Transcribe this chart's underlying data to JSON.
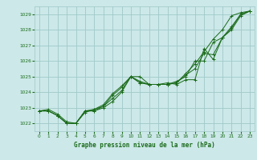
{
  "title": "Graphe pression niveau de la mer (hPa)",
  "background_color": "#cce8e8",
  "grid_color": "#a0c8c8",
  "line_color": "#1a6b1a",
  "ylim": [
    1021.5,
    1029.5
  ],
  "xlim": [
    -0.5,
    23.5
  ],
  "yticks": [
    1022,
    1023,
    1024,
    1025,
    1026,
    1027,
    1028,
    1029
  ],
  "x_ticks": [
    0,
    1,
    2,
    3,
    4,
    5,
    6,
    7,
    8,
    9,
    10,
    11,
    12,
    13,
    14,
    15,
    16,
    17,
    18,
    19,
    20,
    21,
    22,
    23
  ],
  "series": [
    [
      1022.8,
      1022.8,
      1022.5,
      1022.0,
      1022.0,
      1022.8,
      1022.8,
      1023.0,
      1023.4,
      1024.0,
      1025.0,
      1024.6,
      1024.5,
      1024.5,
      1024.6,
      1024.5,
      1024.8,
      1024.8,
      1026.8,
      1026.1,
      1027.5,
      1028.1,
      1029.0,
      1029.2
    ],
    [
      1022.8,
      1022.9,
      1022.6,
      1022.1,
      1022.0,
      1022.7,
      1022.9,
      1023.1,
      1023.8,
      1024.3,
      1025.0,
      1024.7,
      1024.5,
      1024.5,
      1024.5,
      1024.6,
      1025.2,
      1025.8,
      1026.6,
      1027.4,
      1028.0,
      1028.9,
      1029.1,
      1029.2
    ],
    [
      1022.8,
      1022.8,
      1022.5,
      1022.0,
      1022.0,
      1022.8,
      1022.9,
      1023.2,
      1023.9,
      1024.4,
      1025.0,
      1025.0,
      1024.5,
      1024.5,
      1024.5,
      1024.7,
      1025.0,
      1026.0,
      1026.0,
      1027.2,
      1027.5,
      1028.2,
      1029.0,
      1029.2
    ],
    [
      1022.8,
      1022.8,
      1022.5,
      1022.0,
      1022.0,
      1022.8,
      1022.8,
      1023.1,
      1023.6,
      1024.1,
      1025.0,
      1024.6,
      1024.5,
      1024.5,
      1024.5,
      1024.6,
      1025.1,
      1025.5,
      1026.5,
      1026.4,
      1027.5,
      1028.0,
      1028.9,
      1029.2
    ]
  ]
}
